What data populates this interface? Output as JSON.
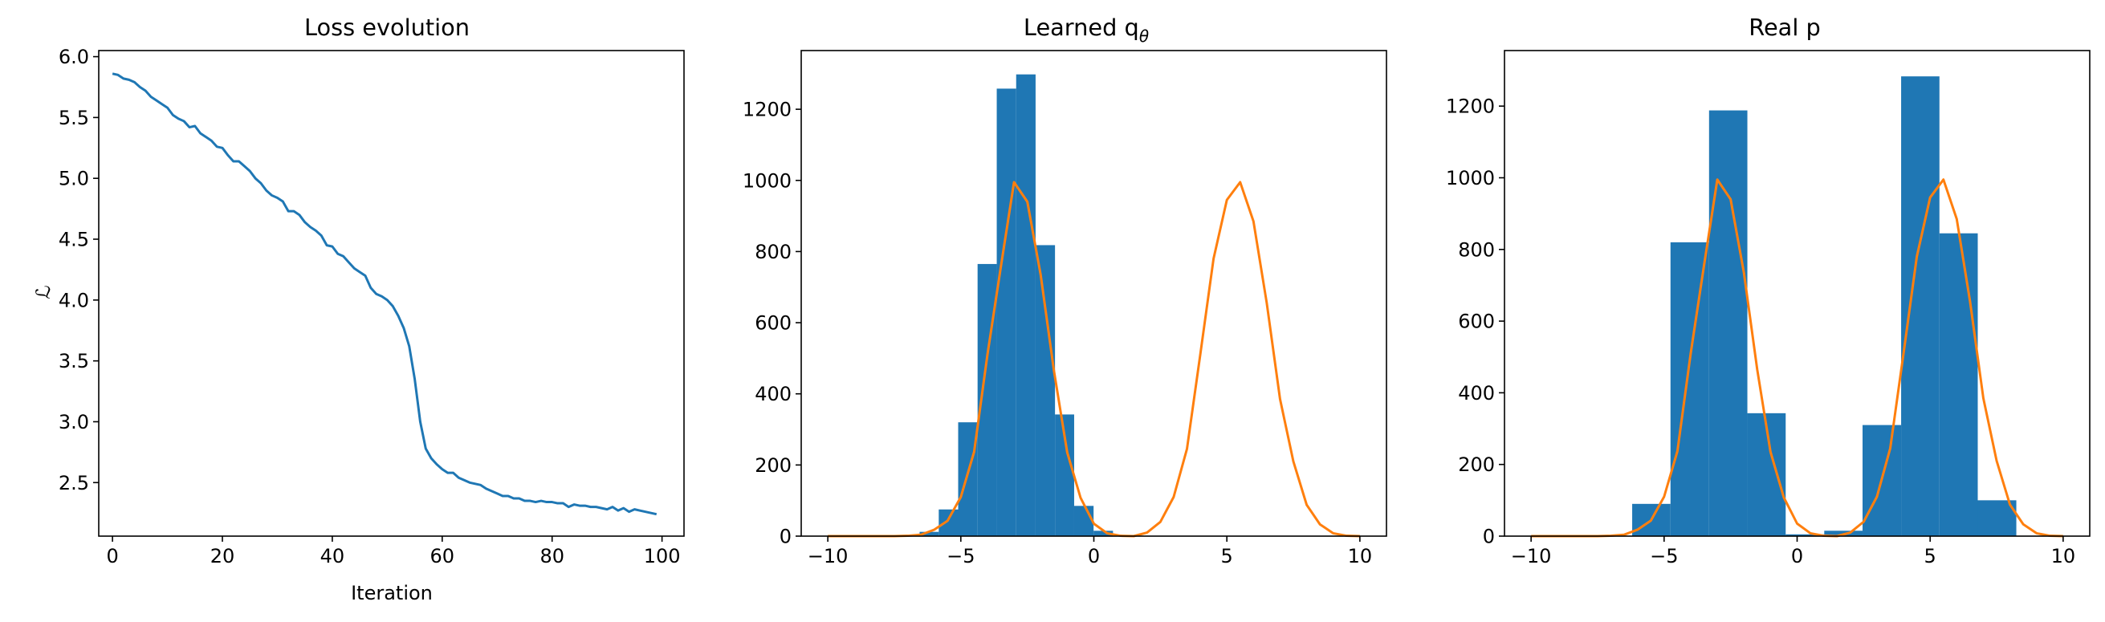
{
  "chart_data": [
    {
      "type": "line",
      "title": "Loss evolution",
      "xlabel": "Iteration",
      "ylabel": "ℒ",
      "xlim": [
        -2.5,
        104
      ],
      "ylim": [
        2.06,
        6.05
      ],
      "xticks": [
        0,
        20,
        40,
        60,
        80,
        100
      ],
      "yticks": [
        2.5,
        3.0,
        3.5,
        4.0,
        4.5,
        5.0,
        5.5,
        6.0
      ],
      "ytick_labels": [
        "2.5",
        "3.0",
        "3.5",
        "4.0",
        "4.5",
        "5.0",
        "5.5",
        "6.0"
      ],
      "grid": false,
      "series": [
        {
          "color": "#1f77b4",
          "x": [
            0,
            1,
            2,
            3,
            4,
            5,
            6,
            7,
            8,
            9,
            10,
            11,
            12,
            13,
            14,
            15,
            16,
            17,
            18,
            19,
            20,
            21,
            22,
            23,
            24,
            25,
            26,
            27,
            28,
            29,
            30,
            31,
            32,
            33,
            34,
            35,
            36,
            37,
            38,
            39,
            40,
            41,
            42,
            43,
            44,
            45,
            46,
            47,
            48,
            49,
            50,
            51,
            52,
            53,
            54,
            55,
            56,
            57,
            58,
            59,
            60,
            61,
            62,
            63,
            64,
            65,
            66,
            67,
            68,
            69,
            70,
            71,
            72,
            73,
            74,
            75,
            76,
            77,
            78,
            79,
            80,
            81,
            82,
            83,
            84,
            85,
            86,
            87,
            88,
            89,
            90,
            91,
            92,
            93,
            94,
            95,
            96,
            97,
            98,
            99
          ],
          "y": [
            5.86,
            5.85,
            5.82,
            5.81,
            5.79,
            5.75,
            5.72,
            5.67,
            5.64,
            5.61,
            5.58,
            5.52,
            5.49,
            5.47,
            5.42,
            5.43,
            5.37,
            5.34,
            5.31,
            5.26,
            5.25,
            5.19,
            5.14,
            5.14,
            5.1,
            5.06,
            5.0,
            4.96,
            4.9,
            4.86,
            4.84,
            4.81,
            4.73,
            4.73,
            4.7,
            4.64,
            4.6,
            4.57,
            4.53,
            4.45,
            4.44,
            4.38,
            4.36,
            4.31,
            4.26,
            4.23,
            4.2,
            4.1,
            4.05,
            4.03,
            4.0,
            3.95,
            3.87,
            3.77,
            3.62,
            3.35,
            3.0,
            2.78,
            2.7,
            2.65,
            2.61,
            2.58,
            2.58,
            2.54,
            2.52,
            2.5,
            2.49,
            2.48,
            2.45,
            2.43,
            2.41,
            2.39,
            2.39,
            2.37,
            2.37,
            2.35,
            2.35,
            2.34,
            2.35,
            2.34,
            2.34,
            2.33,
            2.33,
            2.3,
            2.32,
            2.31,
            2.31,
            2.3,
            2.3,
            2.29,
            2.28,
            2.3,
            2.27,
            2.29,
            2.26,
            2.28,
            2.27,
            2.26,
            2.25,
            2.24
          ]
        }
      ]
    },
    {
      "type": "bar",
      "title": "Learned q",
      "title_subscript": "θ",
      "xlim": [
        -11,
        11
      ],
      "ylim": [
        0,
        1365
      ],
      "xticks": [
        -10,
        -5,
        0,
        5,
        10
      ],
      "xtick_labels": [
        "−10",
        "−5",
        "0",
        "5",
        "10"
      ],
      "yticks": [
        0,
        200,
        400,
        600,
        800,
        1000,
        1200
      ],
      "grid": false,
      "histogram": {
        "color": "#1f77b4",
        "edges": [
          -6.55,
          -5.83,
          -5.1,
          -4.37,
          -3.65,
          -2.92,
          -2.19,
          -1.46,
          -0.74,
          -0.01,
          0.72
        ],
        "counts": [
          12,
          75,
          320,
          765,
          1258,
          1298,
          818,
          342,
          85,
          15
        ]
      },
      "density_curve": {
        "color": "#ff7f0e",
        "x": [
          -10,
          -9.5,
          -9,
          -8.5,
          -8,
          -7.5,
          -7,
          -6.5,
          -6,
          -5.5,
          -5,
          -4.5,
          -4,
          -3.5,
          -3,
          -2.5,
          -2,
          -1.5,
          -1,
          -0.5,
          0,
          0.5,
          1,
          1.5,
          2,
          2.5,
          3,
          3.5,
          4,
          4.5,
          5,
          5.5,
          6,
          6.5,
          7,
          7.5,
          8,
          8.5,
          9,
          9.5,
          10
        ],
        "y": [
          0,
          0,
          0,
          0,
          0,
          0,
          1,
          4,
          18,
          43,
          110,
          237,
          510,
          755,
          995,
          940,
          735,
          465,
          235,
          108,
          35,
          8,
          1,
          0,
          10,
          40,
          110,
          245,
          510,
          780,
          945,
          995,
          885,
          655,
          385,
          210,
          88,
          33,
          8,
          1,
          0
        ]
      }
    },
    {
      "type": "bar",
      "title": "Real p",
      "xlim": [
        -11,
        11
      ],
      "ylim": [
        0,
        1355
      ],
      "xticks": [
        -10,
        -5,
        0,
        5,
        10
      ],
      "xtick_labels": [
        "−10",
        "−5",
        "0",
        "5",
        "10"
      ],
      "yticks": [
        0,
        200,
        400,
        600,
        800,
        1000,
        1200
      ],
      "grid": false,
      "histogram": {
        "color": "#1f77b4",
        "edges": [
          -6.2,
          -4.76,
          -3.31,
          -1.87,
          -0.43,
          1.02,
          2.46,
          3.91,
          5.35,
          6.79,
          8.24
        ],
        "counts": [
          90,
          820,
          1188,
          343,
          5,
          15,
          310,
          1283,
          845,
          100
        ]
      },
      "density_curve": {
        "color": "#ff7f0e",
        "x": [
          -10,
          -9.5,
          -9,
          -8.5,
          -8,
          -7.5,
          -7,
          -6.5,
          -6,
          -5.5,
          -5,
          -4.5,
          -4,
          -3.5,
          -3,
          -2.5,
          -2,
          -1.5,
          -1,
          -0.5,
          0,
          0.5,
          1,
          1.5,
          2,
          2.5,
          3,
          3.5,
          4,
          4.5,
          5,
          5.5,
          6,
          6.5,
          7,
          7.5,
          8,
          8.5,
          9,
          9.5,
          10
        ],
        "y": [
          0,
          0,
          0,
          0,
          0,
          0,
          1,
          4,
          18,
          43,
          110,
          237,
          510,
          755,
          995,
          940,
          735,
          465,
          235,
          108,
          35,
          8,
          1,
          0,
          10,
          40,
          110,
          245,
          510,
          780,
          945,
          995,
          885,
          655,
          385,
          210,
          88,
          33,
          8,
          1,
          0
        ]
      }
    }
  ]
}
